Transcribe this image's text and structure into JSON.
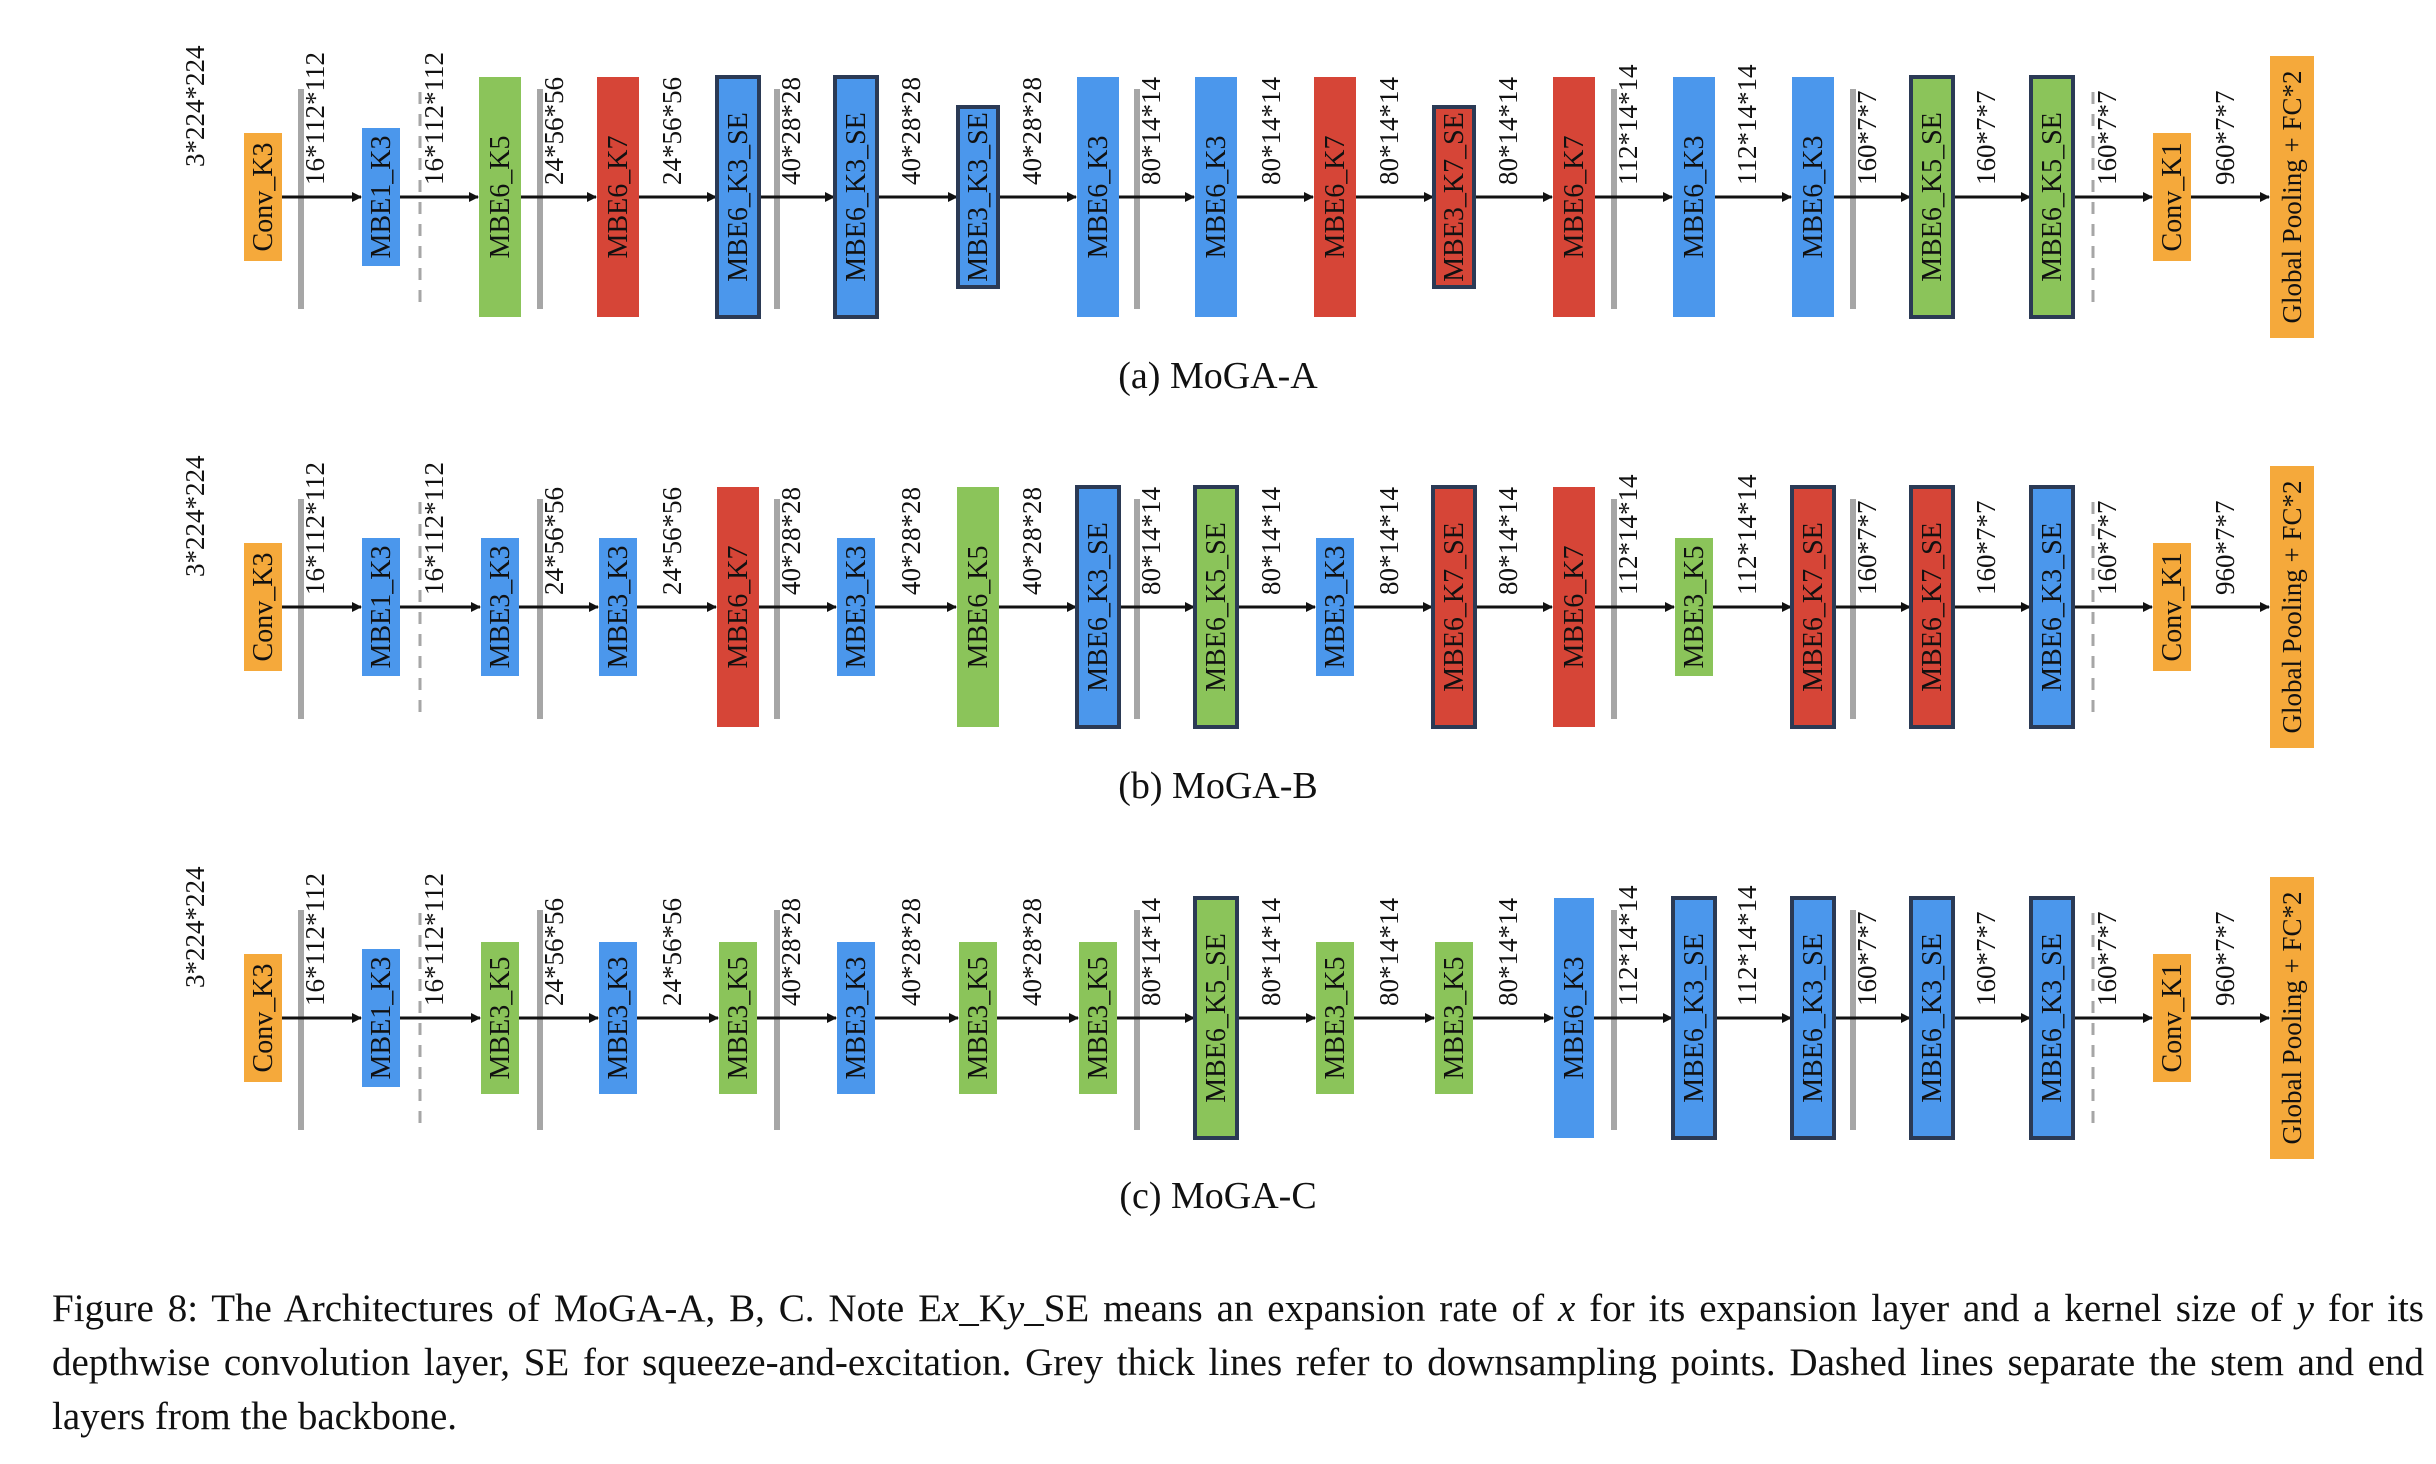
{
  "colors": {
    "conv": "#f5a93b",
    "mbe3": "#8bc45a",
    "mbe6": "#4b97ec",
    "mbe7": "#d64537",
    "grey_line": "#a6a6a6",
    "se_border": "#2b3a55",
    "arrow": "#111111"
  },
  "panels": [
    {
      "label": "(a) MoGA-A",
      "blocks": [
        {
          "label": "Conv_K3",
          "kind": "conv"
        },
        {
          "label": "MBE1_K3",
          "kind": "mbe6"
        },
        {
          "label": "MBE6_K5",
          "kind": "mbe3"
        },
        {
          "label": "MBE6_K7",
          "kind": "mbe7"
        },
        {
          "label": "MBE6_K3_SE",
          "kind": "mbe6"
        },
        {
          "label": "MBE6_K3_SE",
          "kind": "mbe6"
        },
        {
          "label": "MBE3_K3_SE",
          "kind": "mbe6"
        },
        {
          "label": "MBE6_K3",
          "kind": "mbe6"
        },
        {
          "label": "MBE6_K3",
          "kind": "mbe6"
        },
        {
          "label": "MBE6_K7",
          "kind": "mbe7"
        },
        {
          "label": "MBE3_K7_SE",
          "kind": "mbe7"
        },
        {
          "label": "MBE6_K7",
          "kind": "mbe7"
        },
        {
          "label": "MBE6_K3",
          "kind": "mbe6"
        },
        {
          "label": "MBE6_K3",
          "kind": "mbe6"
        },
        {
          "label": "MBE6_K5_SE",
          "kind": "mbe3"
        },
        {
          "label": "MBE6_K5_SE",
          "kind": "mbe3"
        },
        {
          "label": "Conv_K1",
          "kind": "conv"
        },
        {
          "label": "Global Pooling + FC*2",
          "kind": "conv"
        }
      ],
      "dims": [
        "3*224*224",
        "16*112*112",
        "16*112*112",
        "24*56*56",
        "24*56*56",
        "40*28*28",
        "40*28*28",
        "40*28*28",
        "80*14*14",
        "80*14*14",
        "80*14*14",
        "80*14*14",
        "112*14*14",
        "112*14*14",
        "160*7*7",
        "160*7*7",
        "160*7*7",
        "960*7*7"
      ]
    },
    {
      "label": "(b) MoGA-B",
      "blocks": [
        {
          "label": "Conv_K3",
          "kind": "conv"
        },
        {
          "label": "MBE1_K3",
          "kind": "mbe6"
        },
        {
          "label": "MBE3_K3",
          "kind": "mbe6"
        },
        {
          "label": "MBE3_K3",
          "kind": "mbe6"
        },
        {
          "label": "MBE6_K7",
          "kind": "mbe7"
        },
        {
          "label": "MBE3_K3",
          "kind": "mbe6"
        },
        {
          "label": "MBE6_K5",
          "kind": "mbe3"
        },
        {
          "label": "MBE6_K3_SE",
          "kind": "mbe6"
        },
        {
          "label": "MBE6_K5_SE",
          "kind": "mbe3"
        },
        {
          "label": "MBE3_K3",
          "kind": "mbe6"
        },
        {
          "label": "MBE6_K7_SE",
          "kind": "mbe7"
        },
        {
          "label": "MBE6_K7",
          "kind": "mbe7"
        },
        {
          "label": "MBE3_K5",
          "kind": "mbe3"
        },
        {
          "label": "MBE6_K7_SE",
          "kind": "mbe7"
        },
        {
          "label": "MBE6_K7_SE",
          "kind": "mbe7"
        },
        {
          "label": "MBE6_K3_SE",
          "kind": "mbe6"
        },
        {
          "label": "Conv_K1",
          "kind": "conv"
        },
        {
          "label": "Global Pooling + FC*2",
          "kind": "conv"
        }
      ],
      "dims": [
        "3*224*224",
        "16*112*112",
        "16*112*112",
        "24*56*56",
        "24*56*56",
        "40*28*28",
        "40*28*28",
        "40*28*28",
        "80*14*14",
        "80*14*14",
        "80*14*14",
        "80*14*14",
        "112*14*14",
        "112*14*14",
        "160*7*7",
        "160*7*7",
        "160*7*7",
        "960*7*7"
      ]
    },
    {
      "label": "(c) MoGA-C",
      "blocks": [
        {
          "label": "Conv_K3",
          "kind": "conv"
        },
        {
          "label": "MBE1_K3",
          "kind": "mbe6"
        },
        {
          "label": "MBE3_K5",
          "kind": "mbe3"
        },
        {
          "label": "MBE3_K3",
          "kind": "mbe6"
        },
        {
          "label": "MBE3_K5",
          "kind": "mbe3"
        },
        {
          "label": "MBE3_K3",
          "kind": "mbe6"
        },
        {
          "label": "MBE3_K5",
          "kind": "mbe3"
        },
        {
          "label": "MBE3_K5",
          "kind": "mbe3"
        },
        {
          "label": "MBE6_K5_SE",
          "kind": "mbe3"
        },
        {
          "label": "MBE3_K5",
          "kind": "mbe3"
        },
        {
          "label": "MBE3_K5",
          "kind": "mbe3"
        },
        {
          "label": "MBE6_K3",
          "kind": "mbe6"
        },
        {
          "label": "MBE6_K3_SE",
          "kind": "mbe6"
        },
        {
          "label": "MBE6_K3_SE",
          "kind": "mbe6"
        },
        {
          "label": "MBE6_K3_SE",
          "kind": "mbe6"
        },
        {
          "label": "MBE6_K3_SE",
          "kind": "mbe6"
        },
        {
          "label": "Conv_K1",
          "kind": "conv"
        },
        {
          "label": "Global Pooling + FC*2",
          "kind": "conv"
        }
      ],
      "dims": [
        "3*224*224",
        "16*112*112",
        "16*112*112",
        "24*56*56",
        "24*56*56",
        "40*28*28",
        "40*28*28",
        "40*28*28",
        "80*14*14",
        "80*14*14",
        "80*14*14",
        "80*14*14",
        "112*14*14",
        "112*14*14",
        "160*7*7",
        "160*7*7",
        "160*7*7",
        "960*7*7"
      ]
    }
  ],
  "caption": {
    "part1": "Figure 8: The Architectures of MoGA-A, B, C. Note E",
    "var_x": "x",
    "part2": "_K",
    "var_y": "y",
    "part3": "_SE means an expansion rate of ",
    "var_x2": "x",
    "part4": " for its expansion layer and a kernel size of ",
    "var_y2": "y",
    "part5": " for its depthwise convolution layer, SE for squeeze-and-excitation. Grey thick lines refer to downsampling points. Dashed lines separate the stem and end layers from the backbone."
  }
}
